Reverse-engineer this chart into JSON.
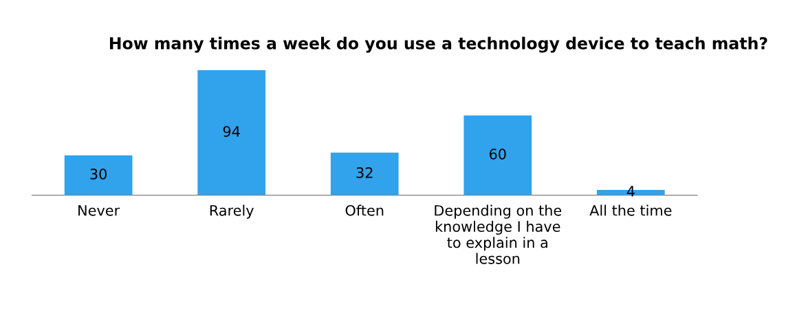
{
  "chart_data": {
    "type": "bar",
    "title": "How many times a week do you use a technology device to teach math?",
    "categories": [
      "Never",
      "Rarely",
      "Often",
      "Depending on the\nknowledge I have\nto explain in a\nlesson",
      "All the time"
    ],
    "values": [
      30,
      94,
      32,
      60,
      4
    ],
    "color": "#31a2ec",
    "data_labels": true,
    "grid": false,
    "legend": false
  }
}
